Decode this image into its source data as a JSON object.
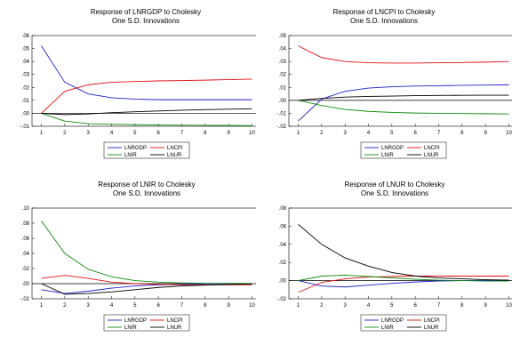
{
  "chart_data": [
    {
      "type": "line",
      "title": "Response of LNRGDP to Cholesky",
      "subtitle": "One S.D. Innovations",
      "x": [
        1,
        2,
        3,
        4,
        5,
        6,
        7,
        8,
        9,
        10
      ],
      "ylim": [
        -0.01,
        0.06
      ],
      "yticks": [
        -0.01,
        0.0,
        0.01,
        0.02,
        0.03,
        0.04,
        0.05,
        0.06
      ],
      "ytick_labels": [
        "-.01",
        ".00",
        ".01",
        ".02",
        ".03",
        ".04",
        ".05",
        ".06"
      ],
      "series": [
        {
          "name": "LNRGDP",
          "color": "#1f1fcc",
          "values": [
            0.052,
            0.024,
            0.015,
            0.012,
            0.011,
            0.0105,
            0.0105,
            0.0105,
            0.0105,
            0.0105
          ]
        },
        {
          "name": "LNCPI",
          "color": "#e01010",
          "values": [
            0.0,
            0.017,
            0.022,
            0.024,
            0.0245,
            0.025,
            0.0253,
            0.0256,
            0.026,
            0.0264
          ]
        },
        {
          "name": "LNIR",
          "color": "#108a10",
          "values": [
            0.0,
            -0.006,
            -0.008,
            -0.0085,
            -0.0088,
            -0.009,
            -0.0092,
            -0.0093,
            -0.0094,
            -0.0095
          ]
        },
        {
          "name": "LNUR",
          "color": "#000000",
          "values": [
            0.0,
            -0.001,
            -0.0005,
            0.0005,
            0.0012,
            0.0018,
            0.0024,
            0.0028,
            0.0032,
            0.0035
          ]
        }
      ],
      "grid": false,
      "legend": "bottom"
    },
    {
      "type": "line",
      "title": "Response of LNCPI to Cholesky",
      "subtitle": "One S.D. Innovations",
      "x": [
        1,
        2,
        3,
        4,
        5,
        6,
        7,
        8,
        9,
        10
      ],
      "ylim": [
        -0.02,
        0.05
      ],
      "yticks": [
        -0.02,
        -0.01,
        0.0,
        0.01,
        0.02,
        0.03,
        0.04,
        0.05
      ],
      "ytick_labels": [
        "-.02",
        "-.01",
        ".00",
        ".01",
        ".02",
        ".03",
        ".04",
        ".05"
      ],
      "series": [
        {
          "name": "LNRGDP",
          "color": "#1f1fcc",
          "values": [
            -0.016,
            0.001,
            0.007,
            0.0095,
            0.0105,
            0.011,
            0.0113,
            0.0116,
            0.0118,
            0.012
          ]
        },
        {
          "name": "LNCPI",
          "color": "#e01010",
          "values": [
            0.042,
            0.033,
            0.03,
            0.029,
            0.0288,
            0.0288,
            0.029,
            0.0292,
            0.0295,
            0.03
          ]
        },
        {
          "name": "LNIR",
          "color": "#108a10",
          "values": [
            0.0,
            -0.004,
            -0.007,
            -0.0085,
            -0.0093,
            -0.0098,
            -0.01,
            -0.0102,
            -0.0103,
            -0.0105
          ]
        },
        {
          "name": "LNUR",
          "color": "#000000",
          "values": [
            0.0,
            0.0015,
            0.0025,
            0.003,
            0.0033,
            0.0036,
            0.0038,
            0.0039,
            0.004,
            0.004
          ]
        }
      ],
      "grid": false,
      "legend": "bottom"
    },
    {
      "type": "line",
      "title": "Response of LNIR to Cholesky",
      "subtitle": "One S.D. Innovations",
      "x": [
        1,
        2,
        3,
        4,
        5,
        6,
        7,
        8,
        9,
        10
      ],
      "ylim": [
        -0.02,
        0.1
      ],
      "yticks": [
        -0.02,
        0.0,
        0.02,
        0.04,
        0.06,
        0.08,
        0.1
      ],
      "ytick_labels": [
        "-.02",
        ".00",
        ".02",
        ".04",
        ".06",
        ".08",
        ".10"
      ],
      "series": [
        {
          "name": "LNRGDP",
          "color": "#1f1fcc",
          "values": [
            -0.008,
            -0.013,
            -0.01,
            -0.006,
            -0.003,
            -0.0015,
            -0.0008,
            -0.0004,
            -0.0002,
            0.0
          ]
        },
        {
          "name": "LNCPI",
          "color": "#e01010",
          "values": [
            0.007,
            0.011,
            0.007,
            0.002,
            0.0,
            -0.001,
            -0.0015,
            -0.0015,
            -0.0015,
            -0.0015
          ]
        },
        {
          "name": "LNIR",
          "color": "#108a10",
          "values": [
            0.083,
            0.04,
            0.019,
            0.009,
            0.004,
            0.002,
            0.001,
            0.0005,
            0.0003,
            0.0002
          ]
        },
        {
          "name": "LNUR",
          "color": "#000000",
          "values": [
            0.0,
            -0.014,
            -0.013,
            -0.011,
            -0.008,
            -0.005,
            -0.003,
            -0.002,
            -0.001,
            -0.0005
          ]
        }
      ],
      "grid": false,
      "legend": "bottom"
    },
    {
      "type": "line",
      "title": "Response of LNUR to Cholesky",
      "subtitle": "One S.D. Innovations",
      "x": [
        1,
        2,
        3,
        4,
        5,
        6,
        7,
        8,
        9,
        10
      ],
      "ylim": [
        -0.02,
        0.08
      ],
      "yticks": [
        -0.02,
        0.0,
        0.02,
        0.04,
        0.06,
        0.08
      ],
      "ytick_labels": [
        "-.02",
        ".00",
        ".02",
        ".04",
        ".06",
        ".08"
      ],
      "series": [
        {
          "name": "LNRGDP",
          "color": "#1f1fcc",
          "values": [
            0.0,
            -0.006,
            -0.007,
            -0.005,
            -0.003,
            -0.0015,
            -0.0005,
            0.0,
            0.0003,
            0.0005
          ]
        },
        {
          "name": "LNCPI",
          "color": "#e01010",
          "values": [
            -0.013,
            -0.002,
            0.002,
            0.004,
            0.0045,
            0.005,
            0.005,
            0.005,
            0.005,
            0.005
          ]
        },
        {
          "name": "LNIR",
          "color": "#108a10",
          "values": [
            0.0,
            0.005,
            0.006,
            0.0045,
            0.003,
            0.0015,
            0.0005,
            0.0,
            -0.0005,
            -0.0005
          ]
        },
        {
          "name": "LNUR",
          "color": "#000000",
          "values": [
            0.062,
            0.04,
            0.025,
            0.016,
            0.009,
            0.005,
            0.003,
            0.002,
            0.001,
            0.0005
          ]
        }
      ],
      "grid": false,
      "legend": "bottom"
    }
  ]
}
